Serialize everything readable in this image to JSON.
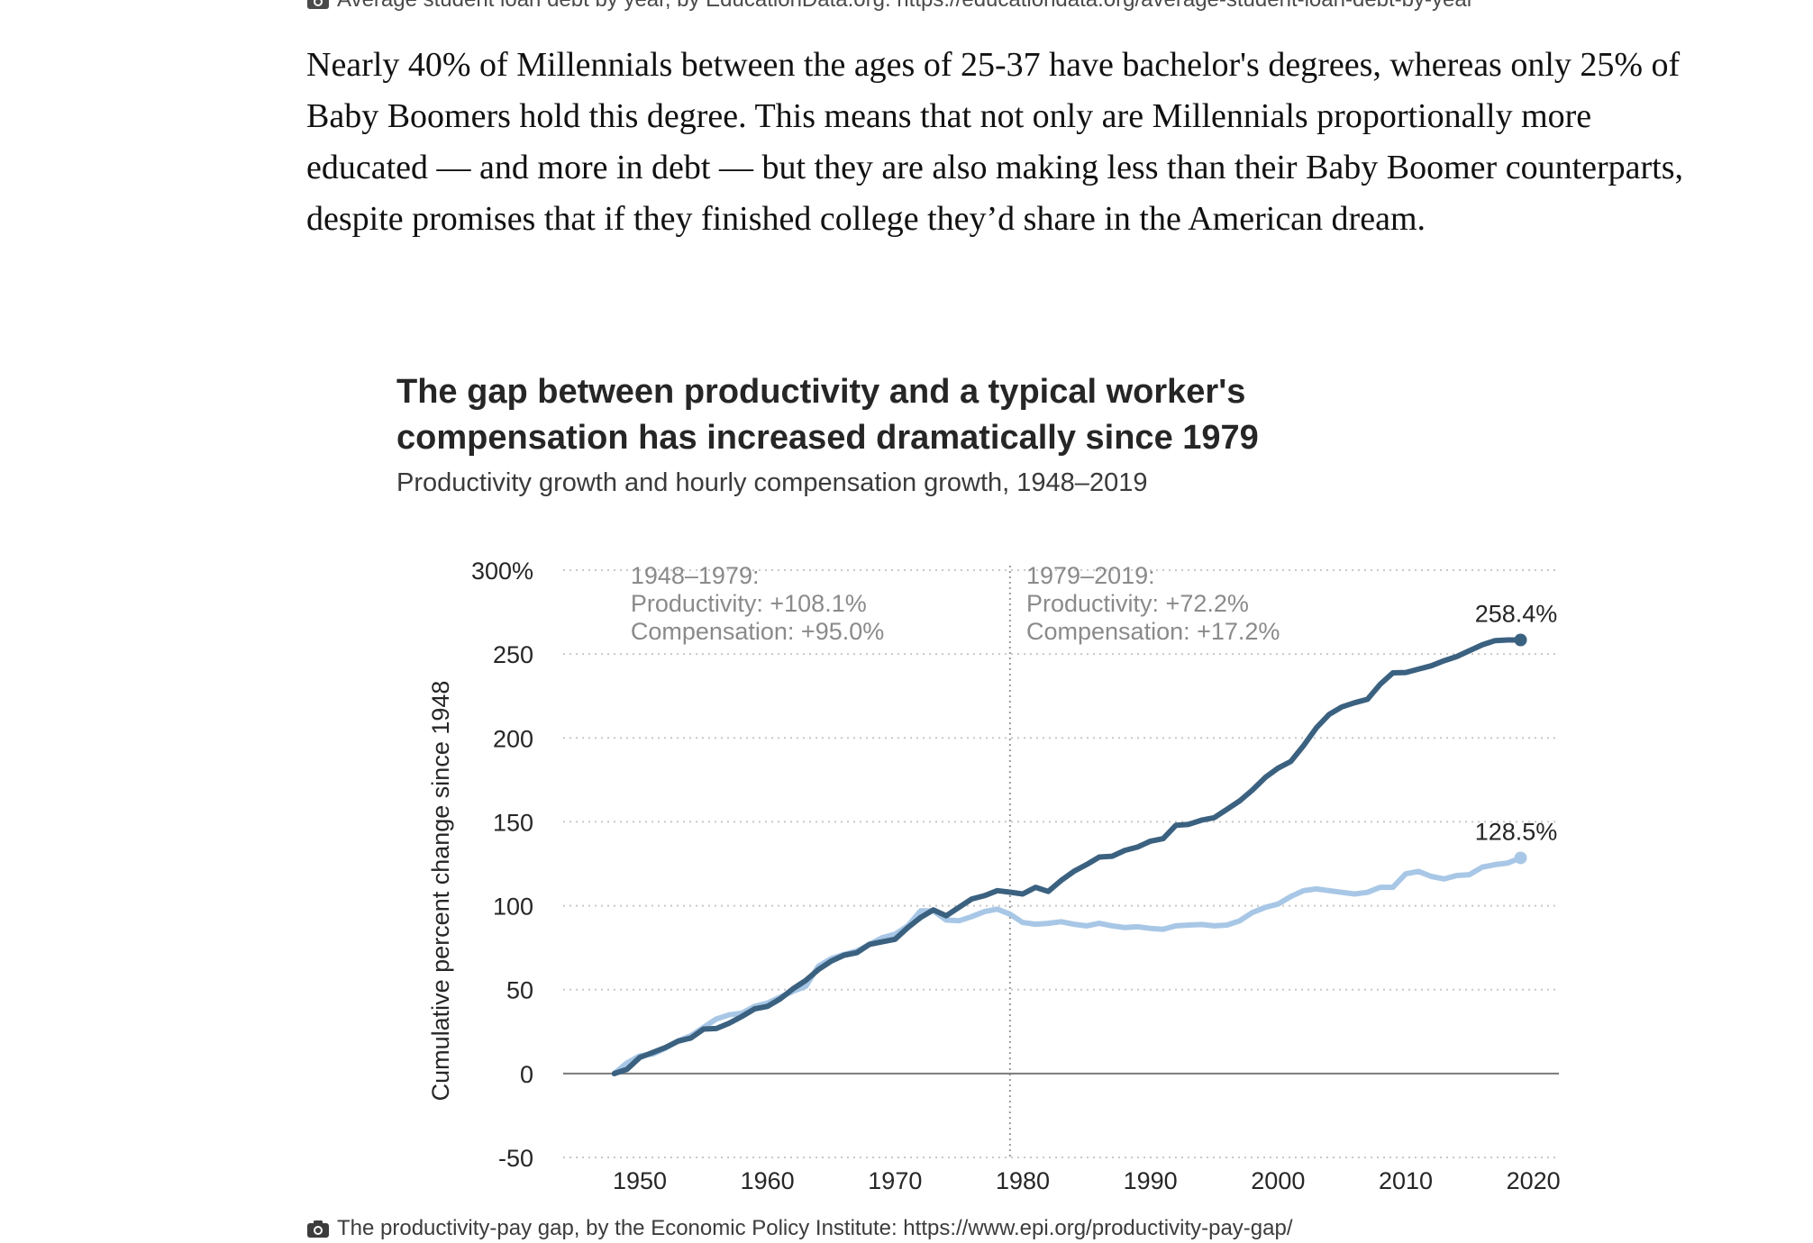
{
  "top_caption": {
    "icon": "camera-icon",
    "text": "Average student loan debt by year, by EducationData.org: https://educationdata.org/average-student-loan-debt-by-year"
  },
  "article": {
    "paragraph": "Nearly 40% of Millennials between the ages of 25-37 have bachelor's degrees, whereas only 25% of Baby Boomers hold this degree. This means that not only are Millennials proportionally more educated — and more in debt — but they are also making less than their Baby Boomer counterparts, despite promises that if they finished college they’d share in the American dream."
  },
  "figure": {
    "title": "The gap between productivity and a typical worker's compensation has increased dramatically since 1979",
    "subtitle": "Productivity growth and hourly compensation growth, 1948–2019"
  },
  "bottom_caption": {
    "icon": "camera-icon",
    "text": "The productivity-pay gap, by the Economic Policy Institute: https://www.epi.org/productivity-pay-gap/"
  },
  "colors": {
    "productivity": "#3b6180",
    "compensation": "#a8c7e6",
    "grid": "#c8c8c8",
    "text": "#262626",
    "annotation": "#8a8a8a"
  },
  "chart_data": {
    "type": "line",
    "title": "The gap between productivity and a typical worker's compensation has increased dramatically since 1979",
    "subtitle": "Productivity growth and hourly compensation growth, 1948–2019",
    "xlabel": "",
    "ylabel": "Cumulative percent change since 1948",
    "xlim": [
      1944,
      2022
    ],
    "ylim": [
      -50,
      300
    ],
    "xticks": [
      1950,
      1960,
      1970,
      1980,
      1990,
      2000,
      2010,
      2020
    ],
    "yticks": [
      300,
      250,
      200,
      150,
      100,
      50,
      0,
      -50
    ],
    "ytick_labels": [
      "300%",
      "250",
      "200",
      "150",
      "100",
      "50",
      "0",
      "-50"
    ],
    "grid": true,
    "divider_year": 1979,
    "annotations": [
      {
        "lines": [
          "1948–1979:",
          "Productivity: +108.1%",
          "Compensation: +95.0%"
        ],
        "anchor_year": 1949
      },
      {
        "lines": [
          "1979–2019:",
          "Productivity: +72.2%",
          "Compensation: +17.2%"
        ],
        "anchor_year": 1980
      }
    ],
    "end_labels": [
      {
        "series": "Productivity",
        "text": "258.4%"
      },
      {
        "series": "Compensation",
        "text": "128.5%"
      }
    ],
    "x": [
      1948,
      1949,
      1950,
      1951,
      1952,
      1953,
      1954,
      1955,
      1956,
      1957,
      1958,
      1959,
      1960,
      1961,
      1962,
      1963,
      1964,
      1965,
      1966,
      1967,
      1968,
      1969,
      1970,
      1971,
      1972,
      1973,
      1974,
      1975,
      1976,
      1977,
      1978,
      1979,
      1980,
      1981,
      1982,
      1983,
      1984,
      1985,
      1986,
      1987,
      1988,
      1989,
      1990,
      1991,
      1992,
      1993,
      1994,
      1995,
      1996,
      1997,
      1998,
      1999,
      2000,
      2001,
      2002,
      2003,
      2004,
      2005,
      2006,
      2007,
      2008,
      2009,
      2010,
      2011,
      2012,
      2013,
      2014,
      2015,
      2016,
      2017,
      2018,
      2019
    ],
    "series": [
      {
        "name": "Productivity",
        "values": [
          0,
          2.5,
          9.6,
          12.5,
          15.5,
          19.3,
          21.2,
          26.5,
          26.8,
          30,
          34,
          38.5,
          40,
          44.5,
          50.5,
          55.5,
          62,
          67,
          70.5,
          72,
          77,
          78.5,
          80,
          87,
          93,
          97.5,
          94,
          99,
          104,
          106,
          109,
          108.1,
          107,
          111,
          108.5,
          115,
          120.5,
          124.5,
          129,
          129.5,
          133,
          135,
          138.5,
          140,
          148,
          148.5,
          151,
          152.5,
          157.5,
          162.5,
          169,
          176.5,
          182,
          186,
          195.5,
          206,
          214,
          218.5,
          221,
          223,
          232,
          238.8,
          239,
          241,
          243,
          246,
          248.5,
          252,
          255.5,
          258,
          258.4,
          258.4
        ]
      },
      {
        "name": "Compensation",
        "values": [
          0,
          6.3,
          10.5,
          11.6,
          15,
          19.4,
          22.5,
          27.5,
          32.5,
          35,
          36,
          40,
          42,
          45.5,
          49,
          52,
          64,
          68.5,
          71,
          73,
          77,
          81,
          83,
          88,
          97,
          97,
          91.5,
          91,
          93.5,
          96.5,
          98,
          95,
          90,
          89,
          89.5,
          90.5,
          89,
          88,
          89.5,
          88,
          87,
          87.5,
          86.5,
          86,
          88,
          88.5,
          88.8,
          88,
          88.5,
          91,
          96,
          99,
          101,
          105.5,
          109,
          110,
          109,
          108,
          107,
          108,
          111,
          111,
          119,
          120.5,
          117.5,
          116,
          118,
          118.5,
          123,
          124.5,
          125.5,
          128.5
        ]
      }
    ]
  }
}
